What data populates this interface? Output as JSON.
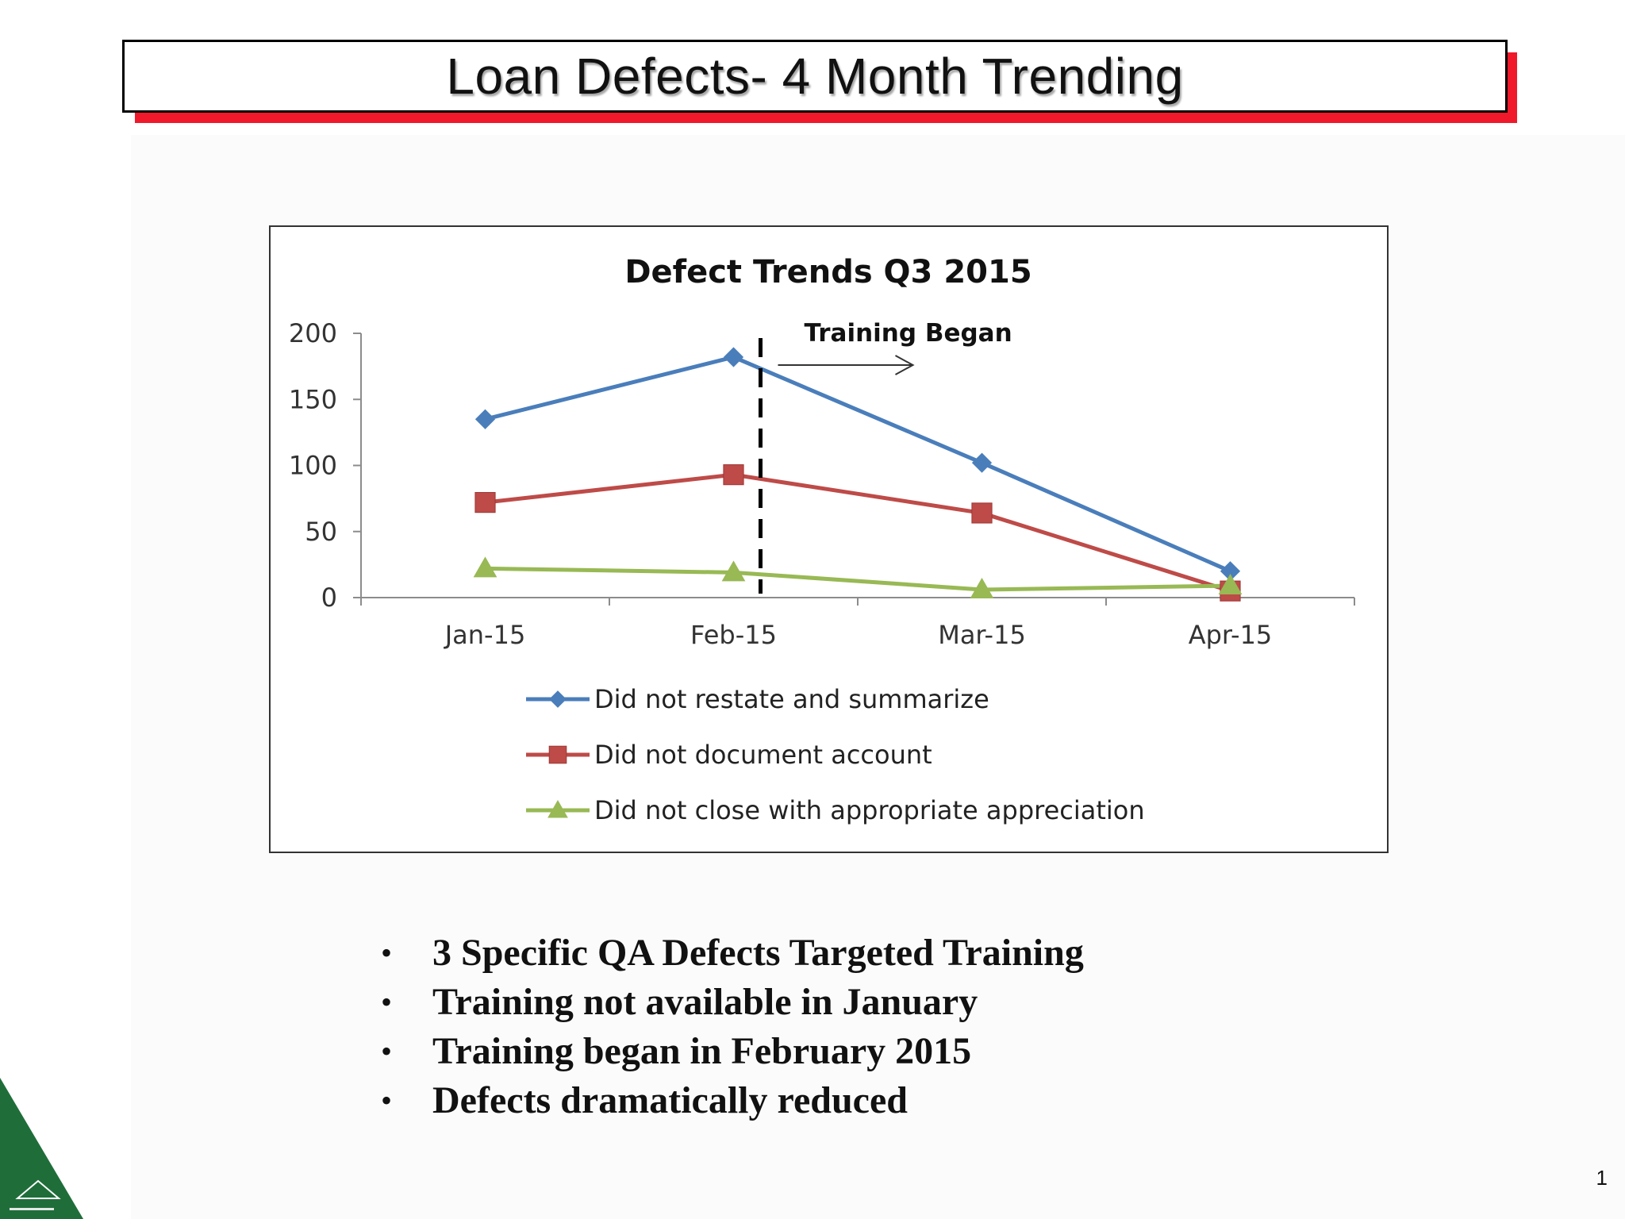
{
  "slide": {
    "title": "Loan Defects- 4 Month Trending",
    "page_number": "1",
    "bullets": [
      "3 Specific QA Defects Targeted Training",
      "Training not available in January",
      "Training began in February 2015",
      "Defects dramatically reduced"
    ],
    "colors": {
      "title_shadow": "#f0192b",
      "logo_green": "#1f6e3a"
    }
  },
  "chart_data": {
    "type": "line",
    "title": "Defect Trends Q3 2015",
    "categories": [
      "Jan-15",
      "Feb-15",
      "Mar-15",
      "Apr-15"
    ],
    "ylim": [
      0,
      200
    ],
    "yticks": [
      0,
      50,
      100,
      150,
      200
    ],
    "series": [
      {
        "name": "Did not restate and summarize",
        "values": [
          135,
          182,
          102,
          20
        ],
        "color": "#4a7ebb",
        "marker": "diamond"
      },
      {
        "name": "Did not document account",
        "values": [
          72,
          93,
          64,
          5
        ],
        "color": "#be4b48",
        "marker": "square"
      },
      {
        "name": "Did not close with appropriate appreciation",
        "values": [
          22,
          19,
          6,
          9
        ],
        "color": "#98b954",
        "marker": "triangle"
      }
    ],
    "annotation": {
      "label": "Training Began",
      "position_category": "Feb-15"
    },
    "legend_position": "bottom",
    "grid": false
  }
}
